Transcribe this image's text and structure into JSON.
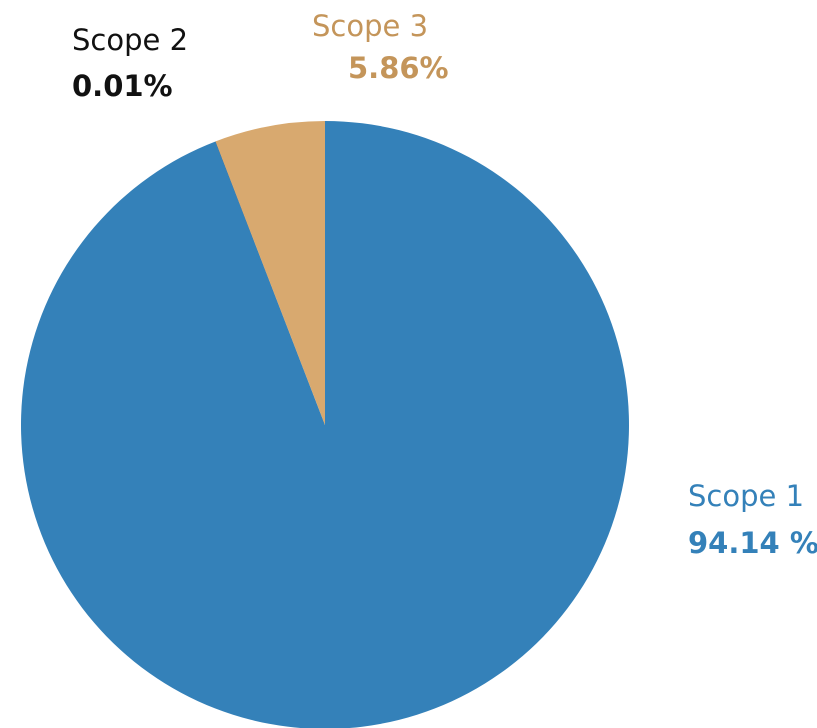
{
  "chart_data": {
    "type": "pie",
    "categories": [
      "Scope 1",
      "Scope 2",
      "Scope 3"
    ],
    "values": [
      94.14,
      0.01,
      5.86
    ],
    "value_labels": [
      "94.14 %",
      "0.01%",
      "5.86%"
    ],
    "colors": [
      "#3481b9",
      "#111111",
      "#d8a96f"
    ],
    "label_colors": [
      "#3481b9",
      "#111111",
      "#c4955a"
    ]
  }
}
